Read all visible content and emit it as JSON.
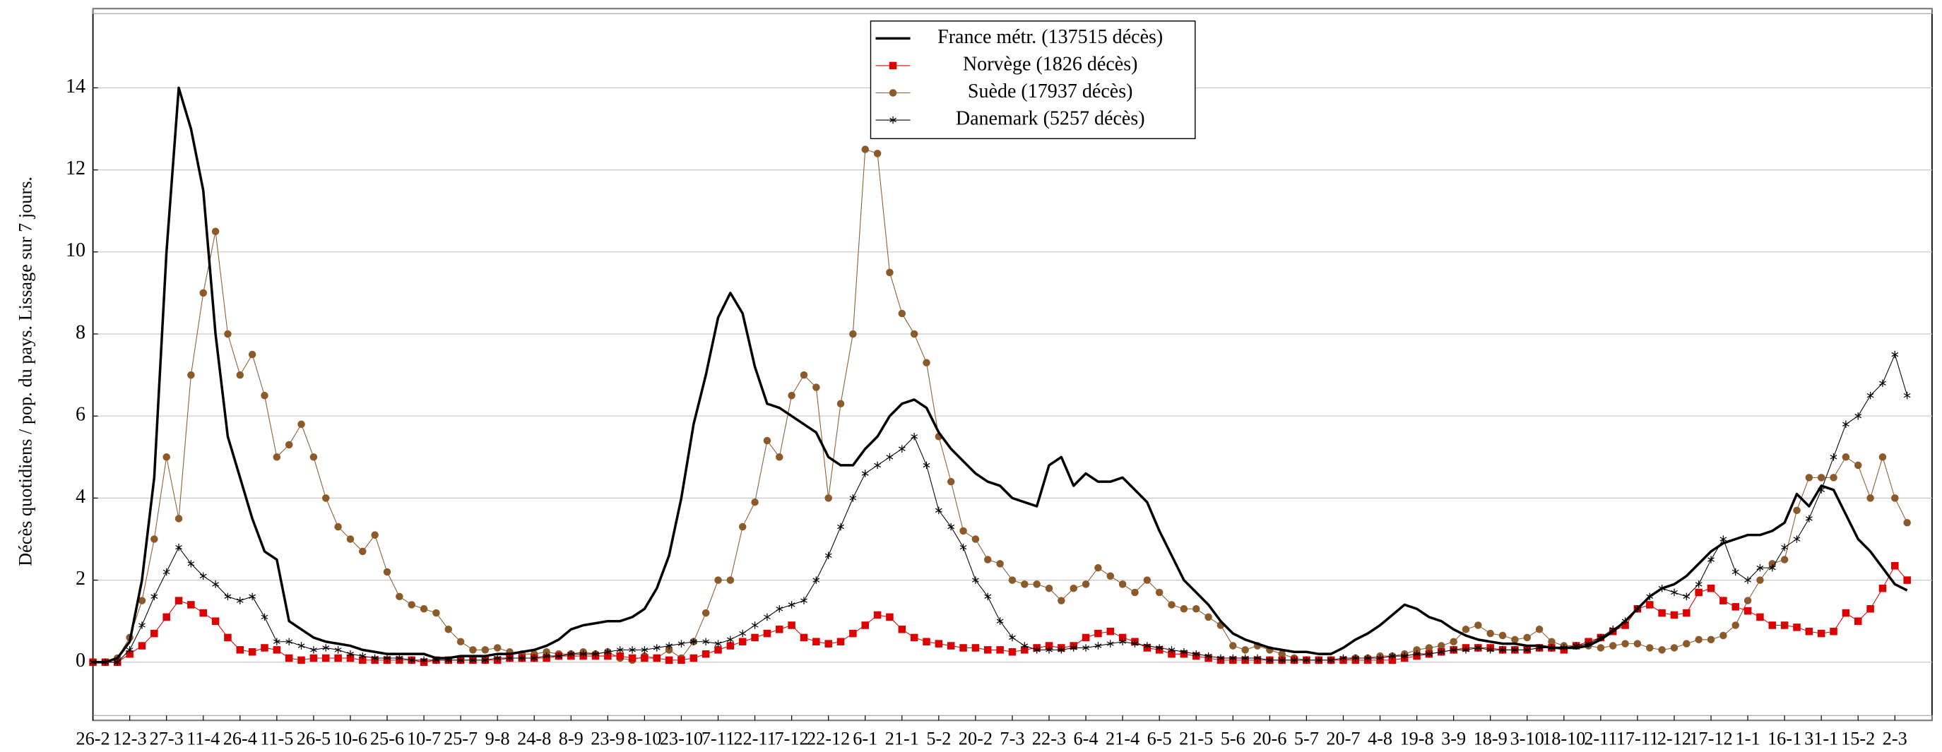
{
  "chart_data": {
    "type": "line",
    "y_label": "Décès quotidiens / pop. du pays. Lissage sur 7 jours.",
    "categories": [
      "26-2",
      null,
      null,
      "12-3",
      null,
      null,
      "27-3",
      null,
      null,
      "11-4",
      null,
      null,
      "26-4",
      null,
      null,
      "11-5",
      null,
      null,
      "26-5",
      null,
      null,
      "10-6",
      null,
      null,
      "25-6",
      null,
      null,
      "10-7",
      null,
      null,
      "25-7",
      null,
      null,
      "9-8",
      null,
      null,
      "24-8",
      null,
      null,
      "8-9",
      null,
      null,
      "23-9",
      null,
      null,
      "8-10",
      null,
      null,
      "23-10",
      null,
      null,
      "7-11",
      null,
      null,
      "22-11",
      null,
      null,
      "7-12",
      null,
      null,
      "22-12",
      null,
      null,
      "6-1",
      null,
      null,
      "21-1",
      null,
      null,
      "5-2",
      null,
      null,
      "20-2",
      null,
      null,
      "7-3",
      null,
      null,
      "22-3",
      null,
      null,
      "6-4",
      null,
      null,
      "21-4",
      null,
      null,
      "6-5",
      null,
      null,
      "21-5",
      null,
      null,
      "5-6",
      null,
      null,
      "20-6",
      null,
      null,
      "5-7",
      null,
      null,
      "20-7",
      null,
      null,
      "4-8",
      null,
      null,
      "19-8",
      null,
      null,
      "3-9",
      null,
      null,
      "18-9",
      null,
      null,
      "3-10",
      null,
      null,
      "18-10",
      null,
      null,
      "2-11",
      null,
      null,
      "17-11",
      null,
      null,
      "2-12",
      null,
      null,
      "17-12",
      null,
      null,
      "1-1",
      null,
      null,
      "16-1",
      null,
      null,
      "31-1",
      null,
      null,
      "15-2",
      null,
      null,
      "2-3",
      null
    ],
    "series": [
      {
        "name": "France métr. (137515 décès)",
        "color": "#000000",
        "marker": "none",
        "width": 2,
        "values": [
          0,
          0,
          0.1,
          0.5,
          2,
          4.5,
          10,
          14,
          13,
          11.5,
          8,
          5.5,
          4.5,
          3.5,
          2.7,
          2.5,
          1,
          0.8,
          0.6,
          0.5,
          0.45,
          0.4,
          0.3,
          0.25,
          0.2,
          0.2,
          0.2,
          0.2,
          0.1,
          0.1,
          0.15,
          0.15,
          0.15,
          0.2,
          0.2,
          0.25,
          0.3,
          0.4,
          0.55,
          0.8,
          0.9,
          0.95,
          1,
          1,
          1.1,
          1.3,
          1.8,
          2.6,
          4,
          5.8,
          7,
          8.4,
          9,
          8.5,
          7.2,
          6.3,
          6.2,
          6,
          5.8,
          5.6,
          5,
          4.8,
          4.8,
          5.2,
          5.5,
          6,
          6.3,
          6.4,
          6.2,
          5.6,
          5.2,
          4.9,
          4.6,
          4.4,
          4.3,
          4,
          3.9,
          3.8,
          4.8,
          5,
          4.3,
          4.6,
          4.4,
          4.4,
          4.5,
          4.2,
          3.9,
          3.2,
          2.6,
          2,
          1.7,
          1.4,
          1,
          0.7,
          0.55,
          0.45,
          0.35,
          0.3,
          0.25,
          0.25,
          0.2,
          0.2,
          0.35,
          0.55,
          0.7,
          0.9,
          1.15,
          1.4,
          1.3,
          1.1,
          1,
          0.8,
          0.65,
          0.55,
          0.5,
          0.45,
          0.45,
          0.4,
          0.4,
          0.35,
          0.35,
          0.35,
          0.4,
          0.55,
          0.75,
          1,
          1.3,
          1.6,
          1.8,
          1.9,
          2.1,
          2.4,
          2.7,
          2.9,
          3,
          3.1,
          3.1,
          3.2,
          3.4,
          4.1,
          3.8,
          4.3,
          4.2,
          3.6,
          3,
          2.7,
          2.3,
          1.9,
          1.75
        ]
      },
      {
        "name": "Norvège (1826 décès)",
        "color": "#dd0000",
        "marker": "square",
        "width": 0.6,
        "values": [
          0,
          0,
          0,
          0.2,
          0.4,
          0.7,
          1.1,
          1.5,
          1.4,
          1.2,
          1,
          0.6,
          0.3,
          0.25,
          0.35,
          0.3,
          0.1,
          0.05,
          0.1,
          0.1,
          0.1,
          0.1,
          0.05,
          0.05,
          0.05,
          0.05,
          0.05,
          0,
          0.05,
          0.05,
          0.05,
          0.05,
          0.05,
          0.05,
          0.1,
          0.1,
          0.1,
          0.1,
          0.15,
          0.15,
          0.15,
          0.15,
          0.15,
          0.15,
          0.1,
          0.1,
          0.1,
          0.05,
          0.05,
          0.1,
          0.2,
          0.3,
          0.4,
          0.5,
          0.6,
          0.7,
          0.8,
          0.9,
          0.6,
          0.5,
          0.45,
          0.5,
          0.7,
          0.9,
          1.15,
          1.1,
          0.8,
          0.6,
          0.5,
          0.45,
          0.4,
          0.35,
          0.35,
          0.3,
          0.3,
          0.25,
          0.3,
          0.35,
          0.4,
          0.35,
          0.4,
          0.6,
          0.7,
          0.75,
          0.6,
          0.5,
          0.35,
          0.3,
          0.2,
          0.2,
          0.15,
          0.1,
          0.05,
          0.05,
          0.05,
          0.05,
          0.05,
          0.05,
          0.05,
          0.05,
          0.05,
          0.05,
          0.05,
          0.05,
          0.05,
          0.05,
          0.05,
          0.1,
          0.15,
          0.2,
          0.25,
          0.3,
          0.35,
          0.35,
          0.35,
          0.3,
          0.3,
          0.3,
          0.35,
          0.35,
          0.3,
          0.4,
          0.5,
          0.6,
          0.75,
          0.9,
          1.3,
          1.4,
          1.2,
          1.15,
          1.2,
          1.7,
          1.8,
          1.5,
          1.35,
          1.25,
          1.1,
          0.9,
          0.9,
          0.85,
          0.75,
          0.7,
          0.75,
          1.2,
          1,
          1.3,
          1.8,
          2.35,
          2
        ]
      },
      {
        "name": "Suède (17937 décès)",
        "color": "#8b5a2b",
        "marker": "circle",
        "width": 0.6,
        "values": [
          0,
          0,
          0.1,
          0.6,
          1.5,
          3,
          5,
          3.5,
          7,
          9,
          10.5,
          8,
          7,
          7.5,
          6.5,
          5,
          5.3,
          5.8,
          5,
          4,
          3.3,
          3,
          2.7,
          3.1,
          2.2,
          1.6,
          1.4,
          1.3,
          1.2,
          0.8,
          0.5,
          0.3,
          0.3,
          0.35,
          0.25,
          0.2,
          0.2,
          0.25,
          0.2,
          0.2,
          0.25,
          0.2,
          0.25,
          0.1,
          0.05,
          0.15,
          0.1,
          0.3,
          0.1,
          0.5,
          1.2,
          2,
          2,
          3.3,
          3.9,
          5.4,
          5,
          6.5,
          7,
          6.7,
          4,
          6.3,
          8,
          12.5,
          12.4,
          9.5,
          8.5,
          8,
          7.3,
          5.5,
          4.4,
          3.2,
          3,
          2.5,
          2.4,
          2,
          1.9,
          1.9,
          1.8,
          1.5,
          1.8,
          1.9,
          2.3,
          2.1,
          1.9,
          1.7,
          2,
          1.7,
          1.4,
          1.3,
          1.3,
          1.1,
          0.9,
          0.4,
          0.3,
          0.4,
          0.3,
          0.2,
          0.1,
          0.05,
          0.05,
          0.05,
          0.05,
          0.1,
          0.1,
          0.15,
          0.15,
          0.2,
          0.3,
          0.35,
          0.4,
          0.5,
          0.8,
          0.9,
          0.7,
          0.65,
          0.55,
          0.6,
          0.8,
          0.5,
          0.4,
          0.4,
          0.4,
          0.35,
          0.4,
          0.45,
          0.45,
          0.35,
          0.3,
          0.35,
          0.45,
          0.55,
          0.55,
          0.65,
          0.9,
          1.5,
          2,
          2.4,
          2.5,
          3.7,
          4.5,
          4.5,
          4.5,
          5,
          4.8,
          4,
          5,
          4,
          3.4
        ]
      },
      {
        "name": "Danemark (5257 décès)",
        "color": "#000000",
        "marker": "star",
        "width": 0.6,
        "values": [
          0,
          0,
          0,
          0.3,
          0.9,
          1.6,
          2.2,
          2.8,
          2.4,
          2.1,
          1.9,
          1.6,
          1.5,
          1.6,
          1.1,
          0.5,
          0.5,
          0.4,
          0.3,
          0.35,
          0.3,
          0.2,
          0.15,
          0.1,
          0.1,
          0.1,
          0.05,
          0.05,
          0.05,
          0.05,
          0.05,
          0.05,
          0.05,
          0.1,
          0.1,
          0.1,
          0.1,
          0.15,
          0.15,
          0.2,
          0.2,
          0.2,
          0.25,
          0.3,
          0.3,
          0.3,
          0.35,
          0.4,
          0.45,
          0.5,
          0.5,
          0.45,
          0.55,
          0.7,
          0.9,
          1.1,
          1.3,
          1.4,
          1.5,
          2,
          2.6,
          3.3,
          4,
          4.6,
          4.8,
          5,
          5.2,
          5.5,
          4.8,
          3.7,
          3.3,
          2.8,
          2,
          1.6,
          1,
          0.6,
          0.4,
          0.3,
          0.3,
          0.3,
          0.35,
          0.35,
          0.4,
          0.45,
          0.5,
          0.45,
          0.4,
          0.35,
          0.3,
          0.25,
          0.2,
          0.15,
          0.1,
          0.1,
          0.1,
          0.1,
          0.05,
          0.05,
          0.05,
          0.05,
          0.05,
          0.05,
          0.1,
          0.1,
          0.1,
          0.1,
          0.15,
          0.15,
          0.2,
          0.2,
          0.25,
          0.3,
          0.3,
          0.35,
          0.3,
          0.3,
          0.3,
          0.3,
          0.35,
          0.35,
          0.35,
          0.4,
          0.45,
          0.6,
          0.8,
          1,
          1.3,
          1.6,
          1.8,
          1.7,
          1.6,
          1.9,
          2.5,
          3,
          2.2,
          2,
          2.3,
          2.3,
          2.8,
          3,
          3.5,
          4.2,
          5,
          5.8,
          6,
          6.5,
          6.8,
          7.5,
          6.5
        ]
      }
    ],
    "ylim": [
      -1.42,
      15.93
    ],
    "yticks": [
      0,
      2,
      4,
      6,
      8,
      10,
      12,
      14
    ],
    "grid": true,
    "legend": "top"
  }
}
